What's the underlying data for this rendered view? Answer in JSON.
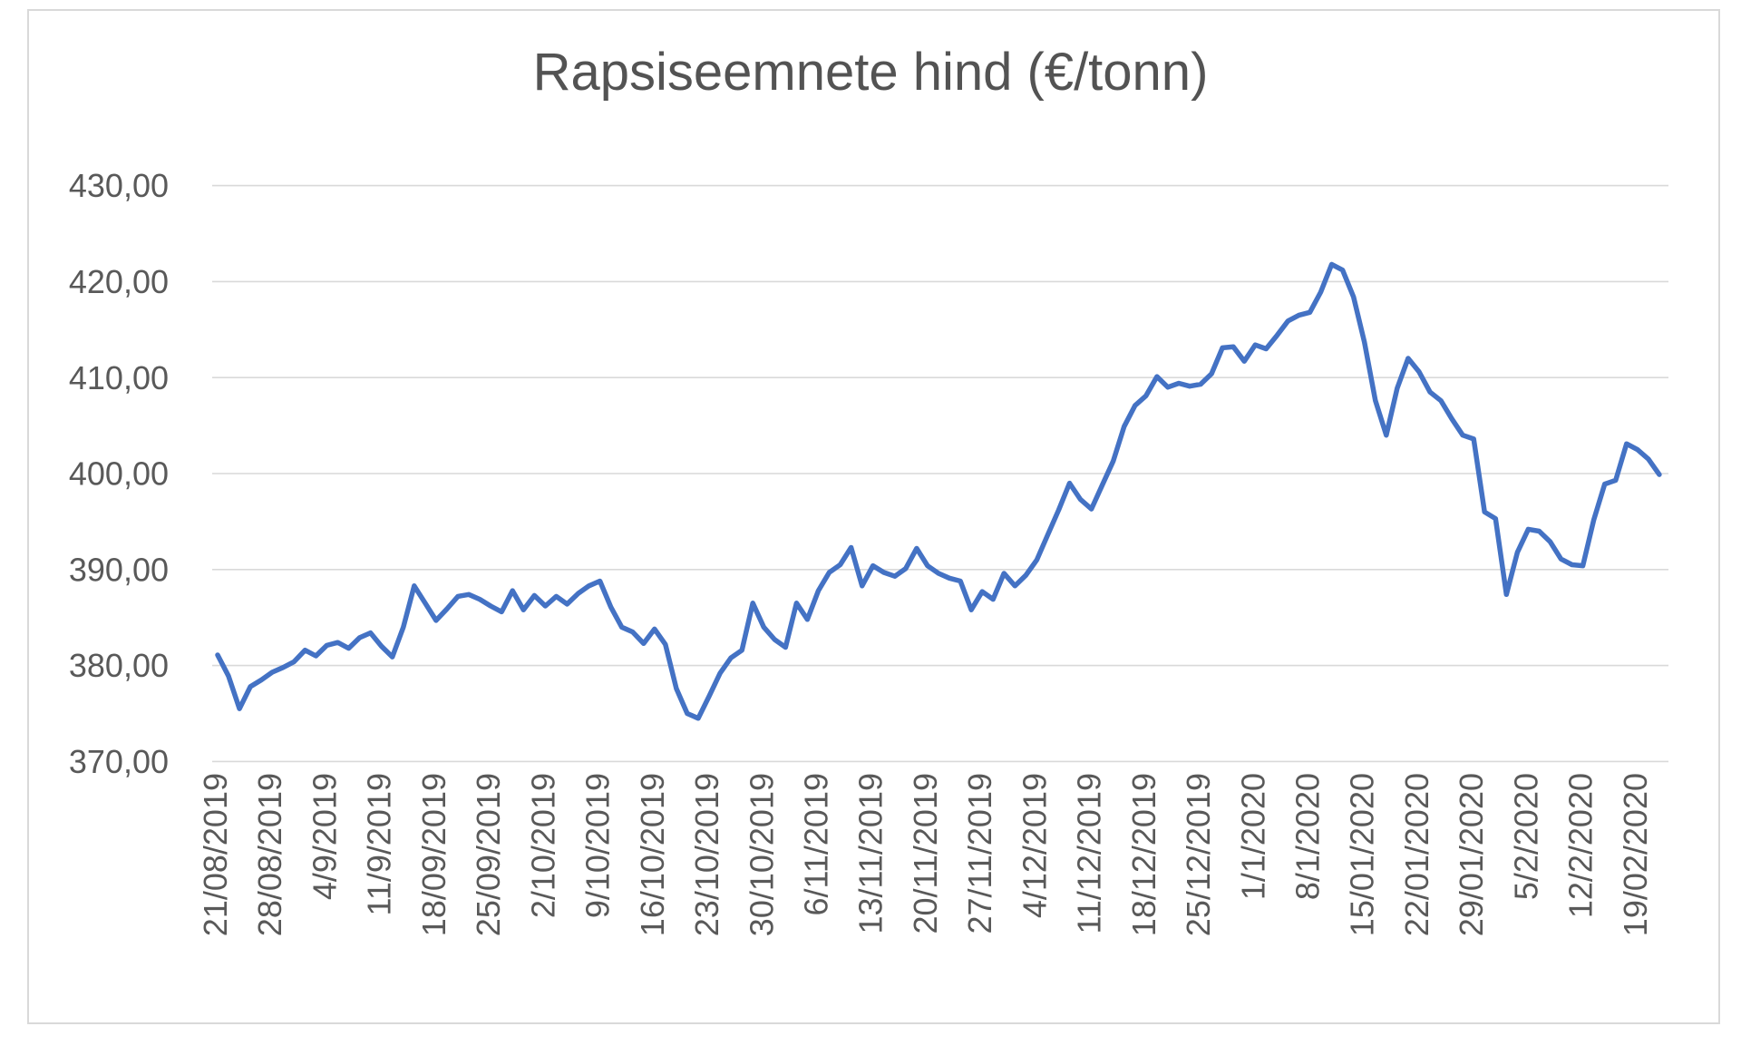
{
  "chart_data": {
    "type": "line",
    "title": "Rapsiseemnete hind (€/tonn)",
    "xlabel": "",
    "ylabel": "",
    "ylim": [
      370,
      430
    ],
    "grid": true,
    "legend": "none",
    "line_color": "#4472C4",
    "grid_color": "#D9D9D9",
    "label_color": "#595959",
    "title_color": "#535353",
    "border_color": "#D9D9D9",
    "y_tick_labels": [
      "430,00",
      "420,00",
      "410,00",
      "400,00",
      "390,00",
      "380,00",
      "370,00"
    ],
    "y_tick_values": [
      430,
      420,
      410,
      400,
      390,
      380,
      370
    ],
    "x_tick_labels": [
      "21/08/2019",
      "28/08/2019",
      "4/9/2019",
      "11/9/2019",
      "18/09/2019",
      "25/09/2019",
      "2/10/2019",
      "9/10/2019",
      "16/10/2019",
      "23/10/2019",
      "30/10/2019",
      "6/11/2019",
      "13/11/2019",
      "20/11/2019",
      "27/11/2019",
      "4/12/2019",
      "11/12/2019",
      "18/12/2019",
      "25/12/2019",
      "1/1/2020",
      "8/1/2020",
      "15/01/2020",
      "22/01/2020",
      "29/01/2020",
      "5/2/2020",
      "12/2/2020",
      "19/02/2020"
    ],
    "points_per_tick": 5,
    "values": [
      381.1,
      378.9,
      375.5,
      377.8,
      378.5,
      379.3,
      379.8,
      380.4,
      381.6,
      381.0,
      382.1,
      382.4,
      381.8,
      382.9,
      383.4,
      382.0,
      380.9,
      384.0,
      388.3,
      386.5,
      384.7,
      385.9,
      387.2,
      387.4,
      386.9,
      386.2,
      385.6,
      387.8,
      385.8,
      387.3,
      386.2,
      387.2,
      386.4,
      387.5,
      388.3,
      388.8,
      386.1,
      384.0,
      383.5,
      382.3,
      383.8,
      382.2,
      377.6,
      375.0,
      374.5,
      376.8,
      379.2,
      380.8,
      381.6,
      386.5,
      384.0,
      382.7,
      381.9,
      386.5,
      384.8,
      387.8,
      389.7,
      390.5,
      392.3,
      388.3,
      390.4,
      389.7,
      389.3,
      390.1,
      392.2,
      390.4,
      389.6,
      389.1,
      388.8,
      385.8,
      387.7,
      386.9,
      389.6,
      388.3,
      389.4,
      391.0,
      393.6,
      396.2,
      399.0,
      397.3,
      396.3,
      398.8,
      401.3,
      404.9,
      407.1,
      408.1,
      410.1,
      409.0,
      409.4,
      409.1,
      409.3,
      410.4,
      413.1,
      413.2,
      411.7,
      413.4,
      413.0,
      414.4,
      415.9,
      416.5,
      416.8,
      418.9,
      421.8,
      421.2,
      418.4,
      413.7,
      407.6,
      404.0,
      408.9,
      412.0,
      410.6,
      408.5,
      407.6,
      405.7,
      404.0,
      403.6,
      396.0,
      395.3,
      387.4,
      391.8,
      394.2,
      394.0,
      392.9,
      391.1,
      390.5,
      390.4,
      395.2,
      398.9,
      399.3,
      403.1,
      402.5,
      401.5,
      399.9
    ]
  }
}
